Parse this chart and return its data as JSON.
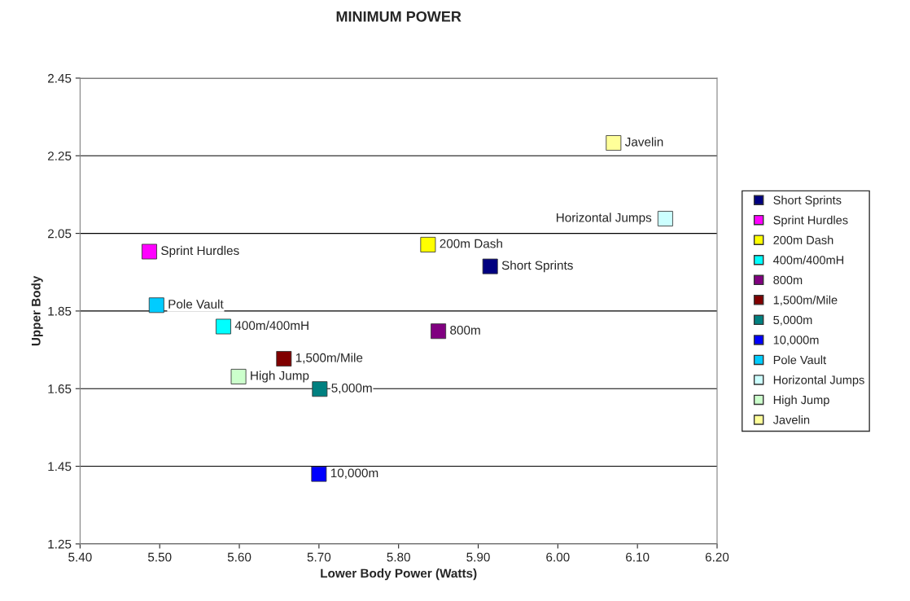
{
  "chart_data": {
    "type": "scatter",
    "title": "MINIMUM POWER",
    "xlabel": "Lower Body Power (Watts)",
    "ylabel": "Upper Body",
    "xlim": [
      5.4,
      6.2
    ],
    "xticks": [
      {
        "value": 5.4,
        "label": "5.40"
      },
      {
        "value": 5.5,
        "label": "5.50"
      },
      {
        "value": 5.6,
        "label": "5.60"
      },
      {
        "value": 5.7,
        "label": "5.70"
      },
      {
        "value": 5.8,
        "label": "5.80"
      },
      {
        "value": 5.9,
        "label": "5.90"
      },
      {
        "value": 6.0,
        "label": "6.00"
      },
      {
        "value": 6.1,
        "label": "6.10"
      },
      {
        "value": 6.2,
        "label": "6.20"
      }
    ],
    "ylim": [
      1.25,
      2.45
    ],
    "yticks": [
      1.25,
      1.45,
      1.65,
      1.85,
      2.05,
      2.25,
      2.45
    ],
    "grid": "y",
    "legend": "right",
    "marker": "square",
    "series": [
      {
        "name": "Short Sprints",
        "color": "#000080",
        "x": [
          5.915
        ],
        "values": [
          1.965
        ]
      },
      {
        "name": "Sprint Hurdles",
        "color": "#ff00ff",
        "x": [
          5.487
        ],
        "values": [
          2.003
        ]
      },
      {
        "name": "200m Dash",
        "color": "#ffff00",
        "x": [
          5.837
        ],
        "values": [
          2.021
        ]
      },
      {
        "name": "400m/400mH",
        "color": "#00ffff",
        "x": [
          5.58
        ],
        "values": [
          1.81
        ]
      },
      {
        "name": "800m",
        "color": "#800080",
        "x": [
          5.85
        ],
        "values": [
          1.798
        ]
      },
      {
        "name": "1,500m/Mile",
        "color": "#800000",
        "x": [
          5.656
        ],
        "values": [
          1.727
        ]
      },
      {
        "name": "5,000m",
        "color": "#008080",
        "x": [
          5.701
        ],
        "values": [
          1.649
        ]
      },
      {
        "name": "10,000m",
        "color": "#0000ff",
        "x": [
          5.7
        ],
        "values": [
          1.43
        ]
      },
      {
        "name": "Pole Vault",
        "color": "#00ccff",
        "x": [
          5.496
        ],
        "values": [
          1.865
        ]
      },
      {
        "name": "Horizontal Jumps",
        "color": "#ccffff",
        "x": [
          6.135
        ],
        "values": [
          2.088
        ]
      },
      {
        "name": "High Jump",
        "color": "#ccffcc",
        "x": [
          5.599
        ],
        "values": [
          1.681
        ]
      },
      {
        "name": "Javelin",
        "color": "#ffff99",
        "x": [
          6.07
        ],
        "values": [
          2.283
        ]
      }
    ]
  }
}
